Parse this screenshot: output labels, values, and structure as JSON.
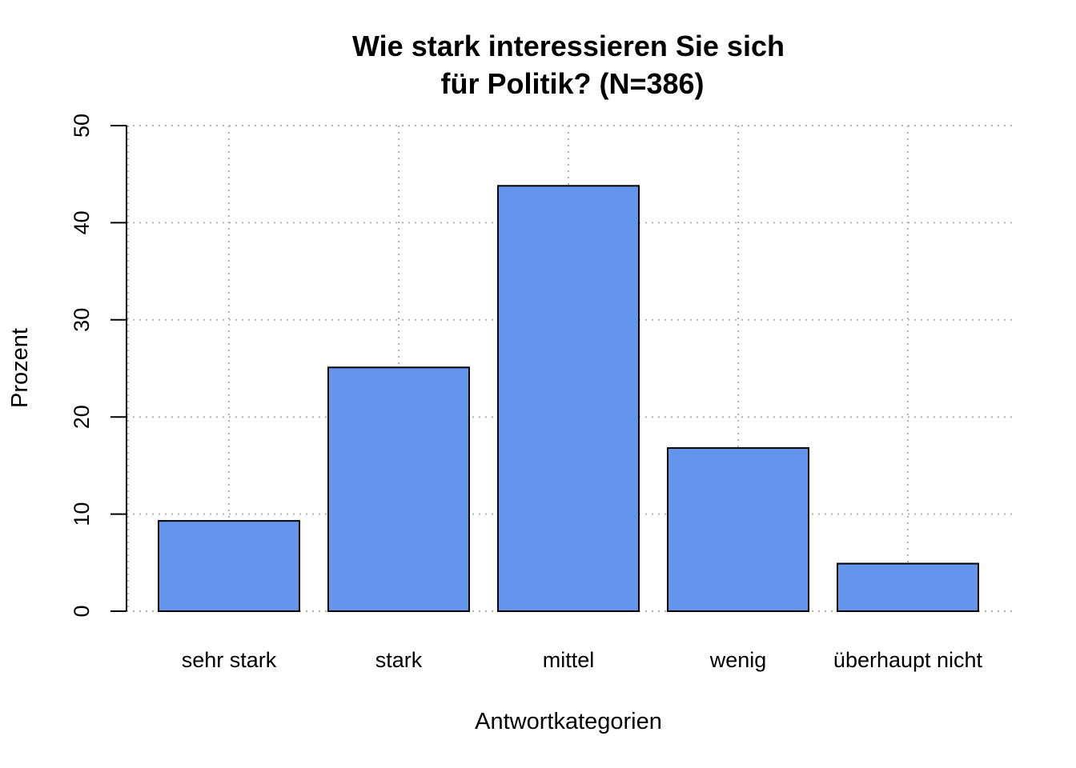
{
  "chart_data": {
    "type": "bar",
    "title": [
      "Wie stark interessieren Sie sich",
      "für Politik? (N=386)"
    ],
    "xlabel": "Antwortkategorien",
    "ylabel": "Prozent",
    "categories": [
      "sehr stark",
      "stark",
      "mittel",
      "wenig",
      "überhaupt nicht"
    ],
    "values": [
      9.3,
      25.1,
      43.8,
      16.8,
      4.9
    ],
    "ylim": [
      0,
      50
    ],
    "yticks": [
      "0",
      "10",
      "20",
      "30",
      "40",
      "50"
    ],
    "grid": true,
    "bar_color": "#6495ed"
  }
}
